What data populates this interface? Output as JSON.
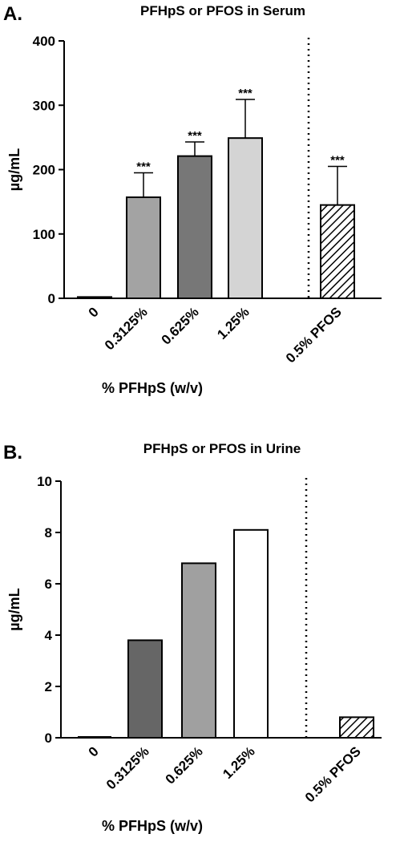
{
  "panels": [
    {
      "letter": "A.",
      "chart_data": {
        "type": "bar",
        "title": "PFHpS or PFOS in Serum",
        "ylabel": "µg/mL",
        "xlabel": "% PFHpS (w/v)",
        "ylim": [
          0,
          400
        ],
        "yticks": [
          "0",
          "100",
          "200",
          "300",
          "400"
        ],
        "categories": [
          "0",
          "0.3125%",
          "0.625%",
          "1.25%",
          "0.5% PFOS"
        ],
        "values": [
          2,
          157,
          221,
          249,
          145
        ],
        "errors": [
          0,
          38,
          22,
          60,
          60
        ],
        "significance": [
          "",
          "***",
          "***",
          "***",
          "***"
        ],
        "colors": [
          "#ffffff",
          "#a3a3a3",
          "#777777",
          "#d4d4d4",
          "hatched"
        ],
        "divider_after_category": "1.25%"
      }
    },
    {
      "letter": "B.",
      "chart_data": {
        "type": "bar",
        "title": "PFHpS or PFOS in Urine",
        "ylabel": "µg/mL",
        "xlabel": "% PFHpS (w/v)",
        "ylim": [
          0,
          10
        ],
        "yticks": [
          "0",
          "2",
          "4",
          "6",
          "8",
          "10"
        ],
        "categories": [
          "0",
          "0.3125%",
          "0.625%",
          "1.25%",
          "0.5% PFOS"
        ],
        "values": [
          0,
          3.8,
          6.8,
          8.1,
          0.8
        ],
        "errors": [
          0,
          0,
          0,
          0,
          0
        ],
        "significance": [
          "",
          "",
          "",
          "",
          ""
        ],
        "colors": [
          "#ffffff",
          "#666666",
          "#a0a0a0",
          "#ffffff",
          "hatched"
        ],
        "divider_after_category": "1.25%"
      }
    }
  ]
}
